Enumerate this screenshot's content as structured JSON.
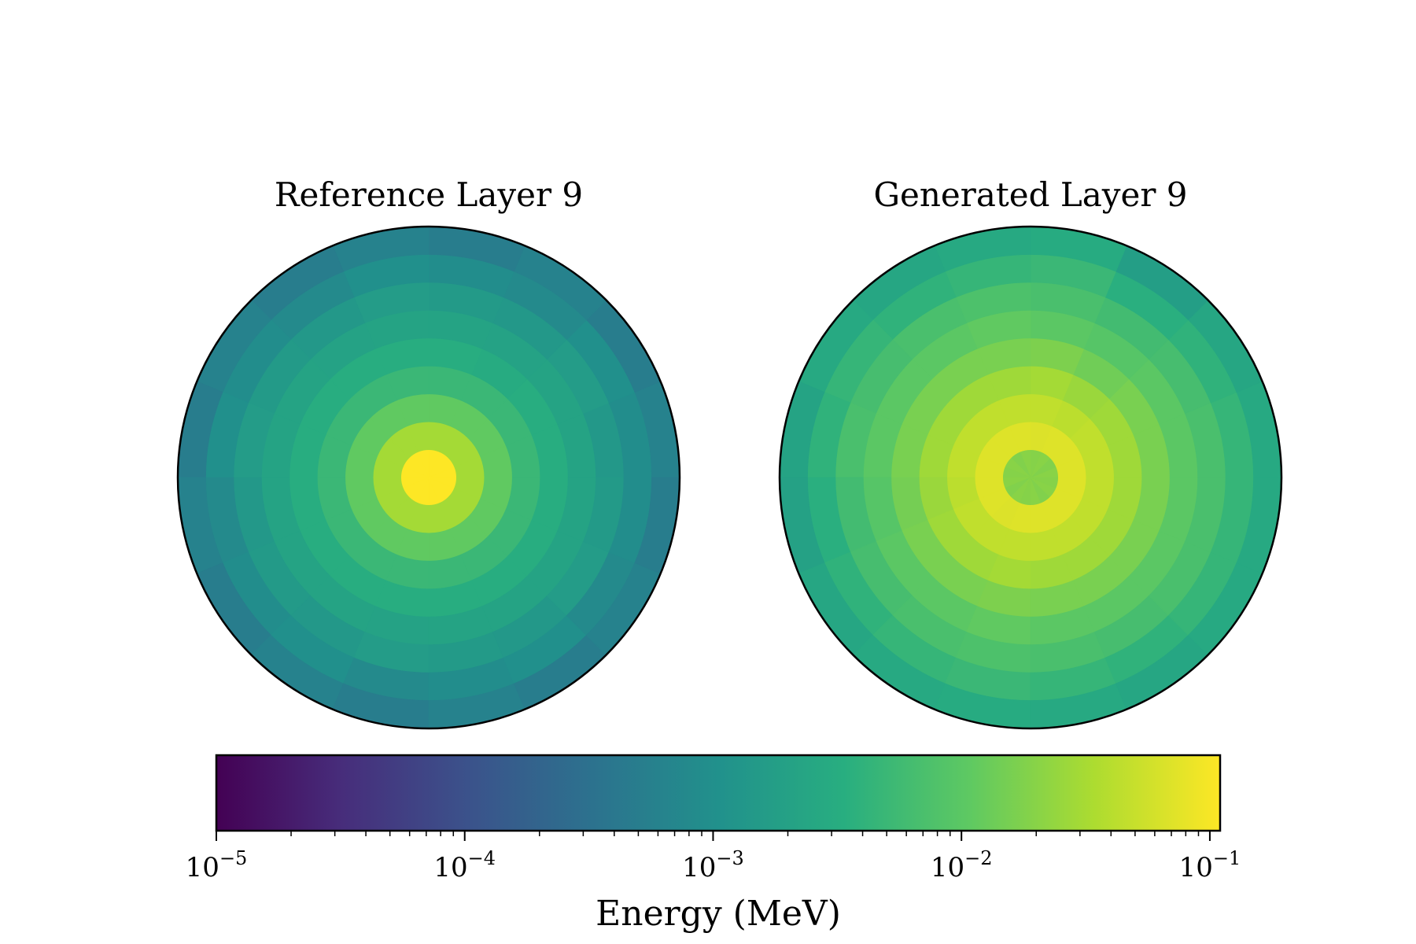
{
  "chart_data": {
    "type": "heatmap",
    "subtype": "polar-heatmap-pair",
    "colormap": "viridis",
    "color_scale": "log",
    "vmin": 1e-05,
    "vmax": 0.11,
    "panels": [
      {
        "title": "Reference Layer 9",
        "radial_bins": 9,
        "angular_bins": 16,
        "values": [
          [
            0.11,
            0.11,
            0.11,
            0.11,
            0.11,
            0.11,
            0.11,
            0.11,
            0.11,
            0.11,
            0.11,
            0.11,
            0.11,
            0.11,
            0.11,
            0.11
          ],
          [
            0.03,
            0.03,
            0.03,
            0.03,
            0.03,
            0.03,
            0.03,
            0.03,
            0.03,
            0.03,
            0.03,
            0.03,
            0.03,
            0.03,
            0.03,
            0.03
          ],
          [
            0.011,
            0.011,
            0.011,
            0.011,
            0.011,
            0.011,
            0.011,
            0.011,
            0.011,
            0.011,
            0.011,
            0.011,
            0.011,
            0.011,
            0.011,
            0.011
          ],
          [
            0.005,
            0.005,
            0.005,
            0.005,
            0.005,
            0.005,
            0.005,
            0.005,
            0.005,
            0.005,
            0.005,
            0.005,
            0.005,
            0.005,
            0.005,
            0.005
          ],
          [
            0.0032,
            0.0032,
            0.003,
            0.0032,
            0.0032,
            0.0032,
            0.0032,
            0.0032,
            0.0032,
            0.0032,
            0.0032,
            0.0032,
            0.0032,
            0.0032,
            0.0032,
            0.0032
          ],
          [
            0.0022,
            0.0022,
            0.0021,
            0.0022,
            0.0022,
            0.0021,
            0.0022,
            0.0022,
            0.0022,
            0.0022,
            0.0022,
            0.0021,
            0.0022,
            0.0022,
            0.0022,
            0.0022
          ],
          [
            0.0014,
            0.0016,
            0.0014,
            0.0015,
            0.0016,
            0.0014,
            0.0015,
            0.0016,
            0.0014,
            0.0015,
            0.0014,
            0.0016,
            0.0015,
            0.0014,
            0.0016,
            0.0015
          ],
          [
            0.0009,
            0.001,
            0.0008,
            0.0009,
            0.001,
            0.0008,
            0.0009,
            0.001,
            0.0008,
            0.0009,
            0.001,
            0.0008,
            0.0009,
            0.001,
            0.0008,
            0.0009
          ],
          [
            0.0006,
            0.0005,
            0.0006,
            0.0005,
            0.0006,
            0.0005,
            0.0006,
            0.0005,
            0.0006,
            0.0005,
            0.0006,
            0.0005,
            0.0006,
            0.0005,
            0.0006,
            0.0005
          ]
        ]
      },
      {
        "title": "Generated Layer 9",
        "radial_bins": 9,
        "angular_bins": 16,
        "values": [
          [
            0.02,
            0.018,
            0.02,
            0.019,
            0.02,
            0.018,
            0.02,
            0.019,
            0.02,
            0.018,
            0.02,
            0.019,
            0.02,
            0.018,
            0.02,
            0.019
          ],
          [
            0.07,
            0.07,
            0.07,
            0.068,
            0.07,
            0.07,
            0.07,
            0.07,
            0.07,
            0.07,
            0.068,
            0.07,
            0.07,
            0.07,
            0.07,
            0.07
          ],
          [
            0.045,
            0.045,
            0.042,
            0.045,
            0.045,
            0.045,
            0.045,
            0.045,
            0.042,
            0.045,
            0.045,
            0.045,
            0.045,
            0.045,
            0.045,
            0.045
          ],
          [
            0.028,
            0.028,
            0.026,
            0.03,
            0.028,
            0.028,
            0.028,
            0.028,
            0.026,
            0.028,
            0.028,
            0.03,
            0.028,
            0.028,
            0.028,
            0.028
          ],
          [
            0.016,
            0.016,
            0.014,
            0.017,
            0.016,
            0.016,
            0.016,
            0.016,
            0.015,
            0.016,
            0.016,
            0.017,
            0.016,
            0.016,
            0.016,
            0.016
          ],
          [
            0.01,
            0.01,
            0.009,
            0.01,
            0.011,
            0.01,
            0.01,
            0.01,
            0.009,
            0.01,
            0.01,
            0.011,
            0.01,
            0.01,
            0.01,
            0.01
          ],
          [
            0.007,
            0.0065,
            0.006,
            0.007,
            0.0075,
            0.007,
            0.0065,
            0.007,
            0.006,
            0.0065,
            0.007,
            0.0075,
            0.007,
            0.0065,
            0.007,
            0.007
          ],
          [
            0.0045,
            0.004,
            0.0035,
            0.005,
            0.0045,
            0.004,
            0.0045,
            0.004,
            0.0035,
            0.004,
            0.0045,
            0.005,
            0.0045,
            0.004,
            0.0045,
            0.0045
          ],
          [
            0.0028,
            0.0024,
            0.0018,
            0.003,
            0.0028,
            0.0024,
            0.0028,
            0.0022,
            0.002,
            0.0024,
            0.0028,
            0.003,
            0.0028,
            0.0024,
            0.0028,
            0.0028
          ]
        ]
      }
    ],
    "colorbar": {
      "label": "Energy (MeV)",
      "orientation": "horizontal",
      "placement": "bottom",
      "ticks": [
        {
          "value": 1e-05,
          "base": "10",
          "exp": "−5"
        },
        {
          "value": 0.0001,
          "base": "10",
          "exp": "−4"
        },
        {
          "value": 0.001,
          "base": "10",
          "exp": "−3"
        },
        {
          "value": 0.01,
          "base": "10",
          "exp": "−2"
        },
        {
          "value": 0.1,
          "base": "10",
          "exp": "−1"
        }
      ]
    }
  }
}
